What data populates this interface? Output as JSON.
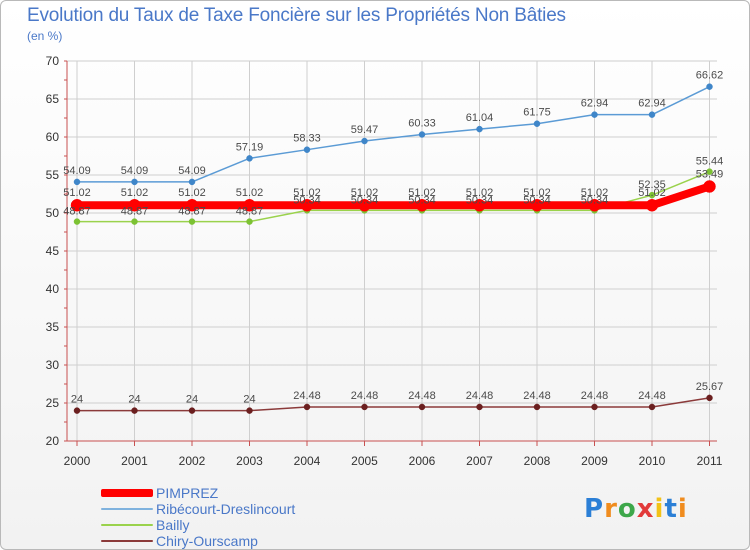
{
  "title": "Evolution du Taux de Taxe Foncière sur les Propriétés Non Bâties",
  "unit_label": "(en %)",
  "logo_text": "Proxiti",
  "colors": {
    "axis": "#c85050",
    "grid": "#cfcfcf",
    "tick_text": "#333333",
    "label_text": "#4a4a4a",
    "title": "#4a78c8"
  },
  "chart_data": {
    "type": "line",
    "title": "Evolution du Taux de Taxe Foncière sur les Propriétés Non Bâties",
    "ylabel": "(en %)",
    "xlabel": "",
    "ylim": [
      20,
      70
    ],
    "yticks": [
      20,
      25,
      30,
      35,
      40,
      45,
      50,
      55,
      60,
      65,
      70
    ],
    "categories": [
      "2000",
      "2001",
      "2002",
      "2003",
      "2004",
      "2005",
      "2006",
      "2007",
      "2008",
      "2009",
      "2010",
      "2011"
    ],
    "series": [
      {
        "name": "Ribécourt-Dreslincourt",
        "color": "#5b9bd5",
        "marker": "#3f86c9",
        "values": [
          54.09,
          54.09,
          54.09,
          57.19,
          58.33,
          59.47,
          60.33,
          61.04,
          61.75,
          62.94,
          62.94,
          66.62
        ],
        "labels": [
          "54.09",
          "54.09",
          "54.09",
          "57.19",
          "58.33",
          "59.47",
          "60.33",
          "61.04",
          "61.75",
          "62.94",
          "62.94",
          "66.62"
        ]
      },
      {
        "name": "Bailly",
        "color": "#9ad24c",
        "marker": "#7cc233",
        "values": [
          48.87,
          48.87,
          48.87,
          48.87,
          50.34,
          50.34,
          50.34,
          50.34,
          50.34,
          50.34,
          52.35,
          55.44
        ],
        "labels": [
          "48.87",
          "48.87",
          "48.87",
          "48.87",
          "50.34",
          "50.34",
          "50.34",
          "50.34",
          "50.34",
          "50.34",
          "52.35",
          "55.44"
        ]
      },
      {
        "name": "PIMPREZ",
        "color": "#ff0000",
        "marker": "#ff0000",
        "values": [
          51.02,
          51.02,
          51.02,
          51.02,
          51.02,
          51.02,
          51.02,
          51.02,
          51.02,
          51.02,
          51.02,
          53.49
        ],
        "labels": [
          "51.02",
          "51.02",
          "51.02",
          "51.02",
          "51.02",
          "51.02",
          "51.02",
          "51.02",
          "51.02",
          "51.02",
          "51.02",
          "53.49"
        ]
      },
      {
        "name": "Chiry-Ourscamp",
        "color": "#8b3a3a",
        "marker": "#6b1f1f",
        "values": [
          24,
          24,
          24,
          24,
          24.48,
          24.48,
          24.48,
          24.48,
          24.48,
          24.48,
          24.48,
          25.67
        ],
        "labels": [
          "24",
          "24",
          "24",
          "24",
          "24.48",
          "24.48",
          "24.48",
          "24.48",
          "24.48",
          "24.48",
          "24.48",
          "25.67"
        ]
      }
    ],
    "legend": [
      {
        "name": "PIMPREZ",
        "color": "#ff0000",
        "style": "thick"
      },
      {
        "name": "Ribécourt-Dreslincourt",
        "color": "#7fb2de",
        "style": "thin"
      },
      {
        "name": "Bailly",
        "color": "#9ad24c",
        "style": "thin"
      },
      {
        "name": "Chiry-Ourscamp",
        "color": "#8b3a3a",
        "style": "thin"
      }
    ],
    "legend_position": "bottom-left",
    "grid": true
  }
}
